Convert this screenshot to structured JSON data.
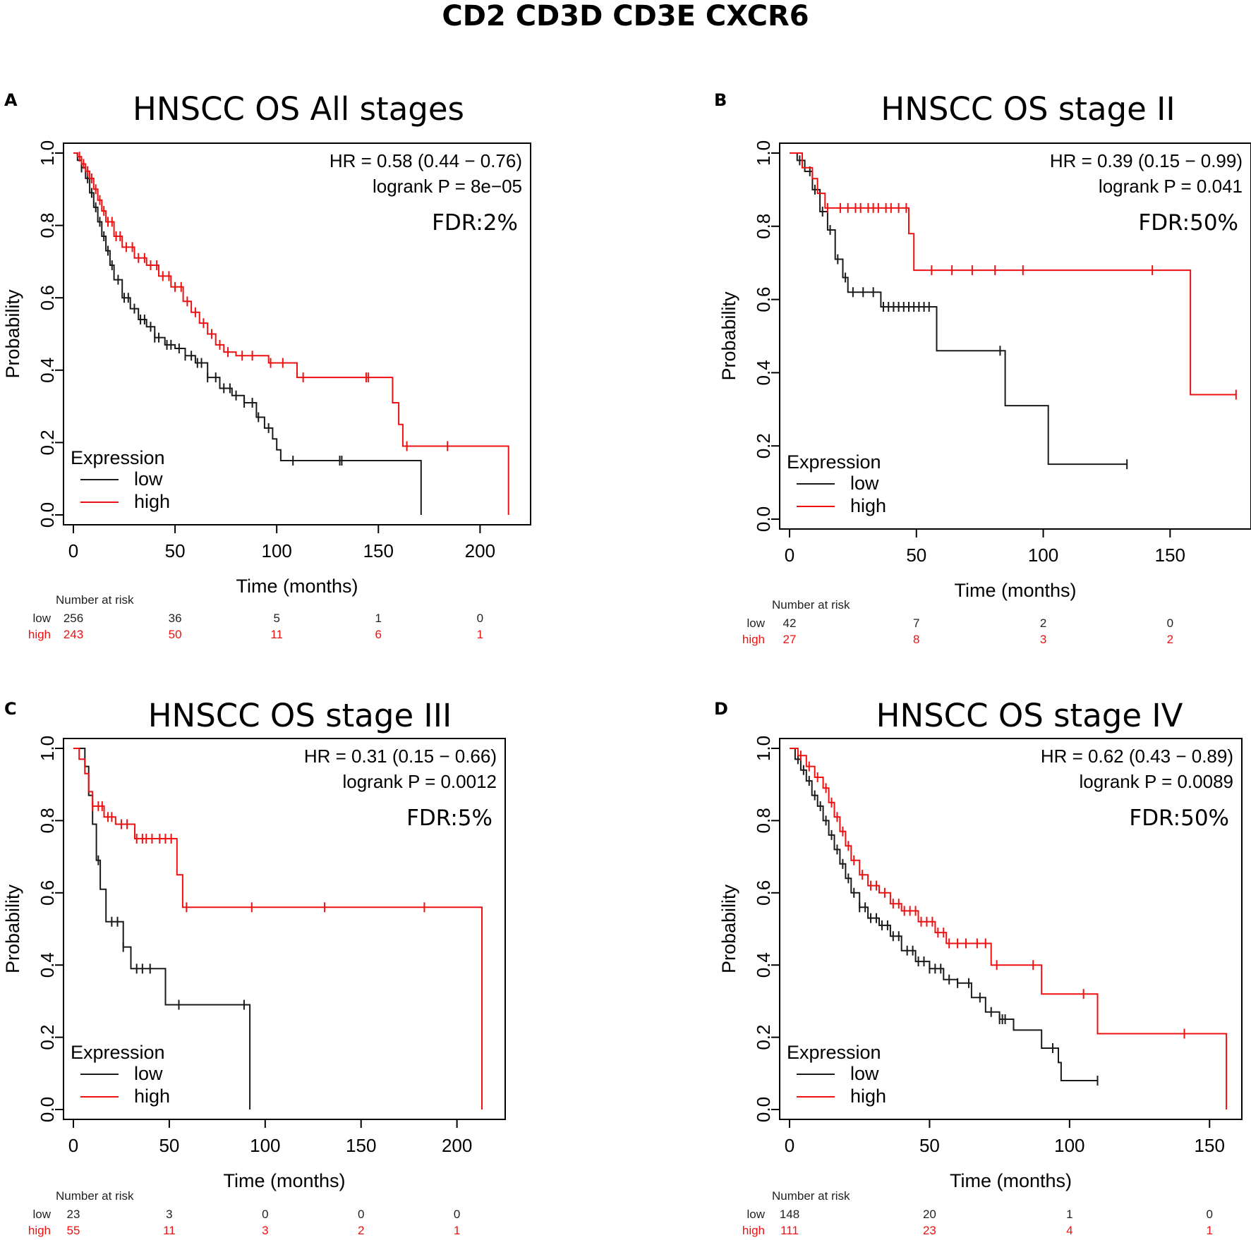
{
  "figure_title": "CD2 CD3D CD3E CXCR6",
  "colors": {
    "low": "#1a1a1a",
    "high": "#ee1111",
    "frame": "#000000"
  },
  "chart_data": [
    {
      "type": "line",
      "panel_letter": "A",
      "title": "HNSCC OS All stages",
      "xlabel": "Time (months)",
      "ylabel": "Probability",
      "xlim": [
        0,
        220
      ],
      "ylim": [
        0,
        1
      ],
      "xticks": [
        "0",
        "50",
        "100",
        "150",
        "200"
      ],
      "yticks": [
        "0.0",
        "0.2",
        "0.4",
        "0.6",
        "0.8",
        "1.0"
      ],
      "stats": {
        "hr": "HR = 0.58 (0.44 − 0.76)",
        "logrank": "logrank P = 8e−05",
        "fdr": "FDR:2%"
      },
      "legend": {
        "title": "Expression",
        "low": "low",
        "high": "high"
      },
      "series": [
        {
          "name": "low",
          "x": [
            0,
            2,
            4,
            6,
            8,
            10,
            12,
            14,
            16,
            18,
            20,
            24,
            28,
            32,
            36,
            40,
            45,
            50,
            55,
            60,
            66,
            72,
            78,
            84,
            90,
            94,
            98,
            100,
            102,
            110,
            120,
            132,
            140,
            150,
            160,
            171,
            171
          ],
          "y": [
            1.0,
            0.98,
            0.96,
            0.93,
            0.89,
            0.85,
            0.81,
            0.77,
            0.73,
            0.69,
            0.65,
            0.6,
            0.57,
            0.54,
            0.52,
            0.49,
            0.47,
            0.46,
            0.44,
            0.42,
            0.38,
            0.35,
            0.33,
            0.31,
            0.27,
            0.24,
            0.21,
            0.18,
            0.15,
            0.15,
            0.15,
            0.15,
            0.15,
            0.15,
            0.15,
            0.15,
            0.0
          ],
          "censor_x": [
            4,
            7,
            9,
            11,
            13,
            15,
            17,
            19,
            22,
            25,
            27,
            30,
            33,
            35,
            38,
            40,
            42,
            46,
            48,
            52,
            55,
            58,
            61,
            63,
            66,
            70,
            74,
            77,
            80,
            84,
            88,
            91,
            96,
            108,
            131,
            132
          ]
        },
        {
          "name": "high",
          "x": [
            0,
            2,
            4,
            6,
            8,
            10,
            12,
            14,
            16,
            20,
            24,
            30,
            36,
            42,
            48,
            54,
            58,
            62,
            66,
            70,
            74,
            80,
            90,
            96,
            110,
            130,
            150,
            157,
            160,
            162,
            170,
            200,
            214,
            214
          ],
          "y": [
            1.0,
            0.99,
            0.97,
            0.95,
            0.93,
            0.9,
            0.87,
            0.84,
            0.81,
            0.77,
            0.74,
            0.71,
            0.69,
            0.66,
            0.63,
            0.59,
            0.56,
            0.53,
            0.5,
            0.47,
            0.45,
            0.44,
            0.44,
            0.42,
            0.38,
            0.38,
            0.38,
            0.31,
            0.25,
            0.19,
            0.19,
            0.19,
            0.19,
            0.0
          ],
          "censor_x": [
            3,
            5,
            7,
            9,
            11,
            13,
            15,
            17,
            19,
            21,
            23,
            26,
            29,
            32,
            35,
            38,
            41,
            44,
            47,
            50,
            53,
            56,
            60,
            64,
            68,
            72,
            76,
            83,
            88,
            97,
            103,
            113,
            144,
            145,
            164,
            184
          ]
        }
      ],
      "risk_table": {
        "header": "Number at risk",
        "labels": {
          "low": "low",
          "high": "high"
        },
        "times": [
          0,
          50,
          100,
          150,
          200
        ],
        "low": [
          "256",
          "36",
          "5",
          "1",
          "0"
        ],
        "high": [
          "243",
          "50",
          "11",
          "6",
          "1"
        ]
      }
    },
    {
      "type": "line",
      "panel_letter": "B",
      "title": "HNSCC OS stage II",
      "xlabel": "Time (months)",
      "ylabel": "Probability",
      "xlim": [
        0,
        178
      ],
      "ylim": [
        0,
        1
      ],
      "xticks": [
        "0",
        "50",
        "100",
        "150"
      ],
      "yticks": [
        "0.0",
        "0.2",
        "0.4",
        "0.6",
        "0.8",
        "1.0"
      ],
      "stats": {
        "hr": "HR = 0.39 (0.15 − 0.99)",
        "logrank": "logrank P = 0.041",
        "fdr": "FDR:50%"
      },
      "legend": {
        "title": "Expression",
        "low": "low",
        "high": "high"
      },
      "series": [
        {
          "name": "low",
          "x": [
            0,
            3,
            6,
            9,
            12,
            15,
            18,
            21,
            23,
            36,
            58,
            85,
            102,
            133
          ],
          "y": [
            1.0,
            0.98,
            0.95,
            0.9,
            0.84,
            0.79,
            0.71,
            0.66,
            0.62,
            0.58,
            0.46,
            0.31,
            0.15,
            0.15
          ],
          "censor_x": [
            4,
            8,
            10,
            13,
            16,
            19,
            22,
            25,
            29,
            33,
            37,
            39,
            41,
            43,
            45,
            47,
            49,
            51,
            53,
            55,
            83,
            133
          ]
        },
        {
          "name": "high",
          "x": [
            0,
            5,
            9,
            11,
            14,
            47,
            49,
            158,
            176
          ],
          "y": [
            1.0,
            0.96,
            0.93,
            0.89,
            0.85,
            0.78,
            0.68,
            0.34,
            0.34
          ],
          "censor_x": [
            15,
            20,
            23,
            26,
            28,
            31,
            33,
            35,
            38,
            40,
            43,
            46,
            56,
            64,
            72,
            81,
            92,
            143,
            176
          ]
        }
      ],
      "risk_table": {
        "header": "Number at risk",
        "labels": {
          "low": "low",
          "high": "high"
        },
        "times": [
          0,
          50,
          100,
          150
        ],
        "low": [
          "42",
          "7",
          "2",
          "0"
        ],
        "high": [
          "27",
          "8",
          "3",
          "2"
        ]
      }
    },
    {
      "type": "line",
      "panel_letter": "C",
      "title": "HNSCC OS stage III",
      "xlabel": "Time (months)",
      "ylabel": "Probability",
      "xlim": [
        0,
        220
      ],
      "ylim": [
        0,
        1
      ],
      "xticks": [
        "0",
        "50",
        "100",
        "150",
        "200"
      ],
      "yticks": [
        "0.0",
        "0.2",
        "0.4",
        "0.6",
        "0.8",
        "1.0"
      ],
      "stats": {
        "hr": "HR = 0.31 (0.15 − 0.66)",
        "logrank": "logrank P = 0.0012",
        "fdr": "FDR:5%"
      },
      "legend": {
        "title": "Expression",
        "low": "low",
        "high": "high"
      },
      "series": [
        {
          "name": "low",
          "x": [
            0,
            6,
            8,
            10,
            12,
            14,
            17,
            26,
            30,
            48,
            92,
            92
          ],
          "y": [
            1.0,
            0.95,
            0.87,
            0.79,
            0.69,
            0.61,
            0.52,
            0.45,
            0.39,
            0.29,
            0.29,
            0.0
          ],
          "censor_x": [
            13,
            20,
            23,
            26,
            33,
            36,
            40,
            55,
            89
          ]
        },
        {
          "name": "high",
          "x": [
            0,
            3,
            6,
            8,
            10,
            16,
            22,
            32,
            54,
            57,
            100,
            150,
            213,
            213
          ],
          "y": [
            1.0,
            0.97,
            0.93,
            0.88,
            0.84,
            0.81,
            0.79,
            0.75,
            0.65,
            0.56,
            0.56,
            0.56,
            0.56,
            0.0
          ],
          "censor_x": [
            10,
            13,
            15,
            18,
            20,
            25,
            28,
            33,
            36,
            38,
            41,
            45,
            48,
            51,
            59,
            93,
            131,
            183
          ]
        }
      ],
      "risk_table": {
        "header": "Number at risk",
        "labels": {
          "low": "low",
          "high": "high"
        },
        "times": [
          0,
          50,
          100,
          150,
          200
        ],
        "low": [
          "23",
          "3",
          "0",
          "0",
          "0"
        ],
        "high": [
          "55",
          "11",
          "3",
          "2",
          "1"
        ]
      }
    },
    {
      "type": "line",
      "panel_letter": "D",
      "title": "HNSCC OS stage IV",
      "xlabel": "Time (months)",
      "ylabel": "Probability",
      "xlim": [
        0,
        158
      ],
      "ylim": [
        0,
        1
      ],
      "xticks": [
        "0",
        "50",
        "100",
        "150"
      ],
      "yticks": [
        "0.0",
        "0.2",
        "0.4",
        "0.6",
        "0.8",
        "1.0"
      ],
      "stats": {
        "hr": "HR = 0.62 (0.43 − 0.89)",
        "logrank": "logrank P = 0.0089",
        "fdr": "FDR:50%"
      },
      "legend": {
        "title": "Expression",
        "low": "low",
        "high": "high"
      },
      "series": [
        {
          "name": "low",
          "x": [
            0,
            2,
            4,
            6,
            8,
            10,
            12,
            14,
            16,
            18,
            20,
            22,
            25,
            28,
            32,
            36,
            40,
            45,
            50,
            55,
            60,
            65,
            70,
            75,
            80,
            90,
            96,
            97,
            110
          ],
          "y": [
            1.0,
            0.97,
            0.94,
            0.91,
            0.87,
            0.84,
            0.8,
            0.76,
            0.72,
            0.68,
            0.64,
            0.6,
            0.56,
            0.53,
            0.51,
            0.48,
            0.44,
            0.41,
            0.39,
            0.36,
            0.35,
            0.31,
            0.27,
            0.25,
            0.22,
            0.17,
            0.13,
            0.08,
            0.08
          ],
          "censor_x": [
            3,
            5,
            7,
            9,
            11,
            13,
            15,
            17,
            19,
            21,
            23,
            25,
            27,
            29,
            31,
            33,
            35,
            37,
            39,
            42,
            44,
            46,
            48,
            50,
            52,
            54,
            57,
            60,
            64,
            68,
            72,
            75,
            76,
            77,
            94,
            110
          ]
        },
        {
          "name": "high",
          "x": [
            0,
            3,
            6,
            9,
            12,
            14,
            16,
            18,
            20,
            22,
            25,
            28,
            32,
            36,
            40,
            46,
            52,
            56,
            72,
            90,
            110,
            156,
            156
          ],
          "y": [
            1.0,
            0.98,
            0.95,
            0.92,
            0.89,
            0.85,
            0.81,
            0.77,
            0.73,
            0.69,
            0.65,
            0.62,
            0.6,
            0.57,
            0.55,
            0.52,
            0.49,
            0.46,
            0.4,
            0.32,
            0.21,
            0.21,
            0.0
          ],
          "censor_x": [
            4,
            7,
            10,
            13,
            15,
            17,
            19,
            21,
            23,
            26,
            29,
            31,
            34,
            37,
            39,
            41,
            43,
            45,
            47,
            49,
            51,
            53,
            55,
            57,
            60,
            63,
            67,
            70,
            74,
            87,
            105,
            141
          ]
        }
      ],
      "risk_table": {
        "header": "Number at risk",
        "labels": {
          "low": "low",
          "high": "high"
        },
        "times": [
          0,
          50,
          100,
          150
        ],
        "low": [
          "148",
          "20",
          "1",
          "0"
        ],
        "high": [
          "111",
          "23",
          "4",
          "1"
        ]
      }
    }
  ]
}
